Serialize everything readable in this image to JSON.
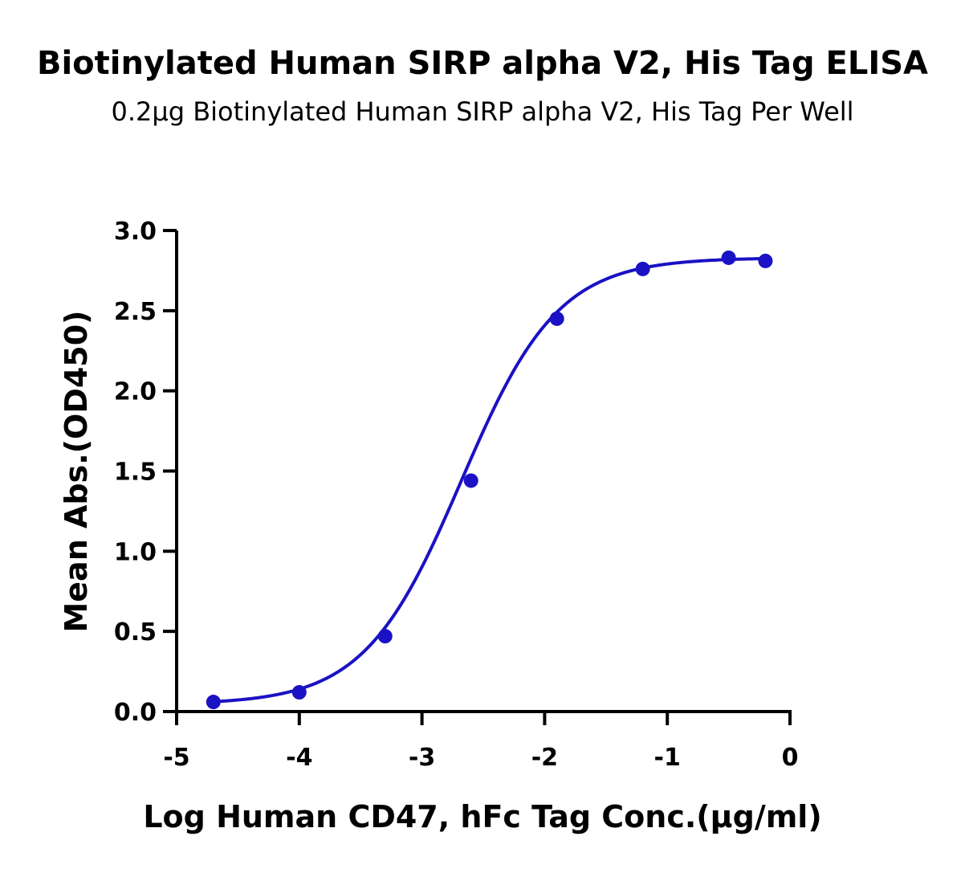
{
  "chart_data": {
    "type": "scatter",
    "title": "Biotinylated Human SIRP alpha V2, His Tag ELISA",
    "subtitle": "0.2μg Biotinylated Human SIRP alpha V2, His Tag Per Well",
    "xlabel": "Log Human CD47, hFc Tag Conc.(μg/ml)",
    "ylabel": "Mean Abs.(OD450)",
    "xlim": [
      -5,
      0
    ],
    "ylim": [
      0,
      3
    ],
    "x_ticks": [
      "-5",
      "-4",
      "-3",
      "-2",
      "-1",
      "0"
    ],
    "y_ticks": [
      "0.0",
      "0.5",
      "1.0",
      "1.5",
      "2.0",
      "2.5",
      "3.0"
    ],
    "grid": false,
    "color": "#1a12c4",
    "series": [
      {
        "x": [
          -4.7,
          -4.0,
          -3.3,
          -2.6,
          -1.9,
          -1.2,
          -0.5,
          -0.2
        ],
        "y": [
          0.06,
          0.12,
          0.47,
          1.44,
          2.45,
          2.76,
          2.83,
          2.81
        ]
      }
    ],
    "fit": {
      "type": "4PL",
      "bottom": 0.045,
      "top": 2.83,
      "logEC50": -2.68,
      "hill": 1.1,
      "x_range": [
        -4.7,
        -0.2
      ]
    }
  }
}
